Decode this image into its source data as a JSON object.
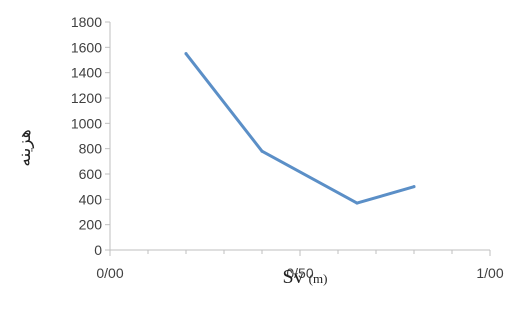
{
  "chart_data": {
    "type": "line",
    "title": "",
    "xlabel": "Sv",
    "xlabel_unit": "(m)",
    "ylabel": "هزینه",
    "x": [
      0.2,
      0.4,
      0.65,
      0.8
    ],
    "series": [
      {
        "values": [
          1550,
          780,
          370,
          500
        ],
        "color": "#5b8fc7"
      }
    ],
    "xlim": [
      0,
      1
    ],
    "ylim": [
      0,
      1800
    ],
    "x_ticks": [
      {
        "value": 0,
        "label": "0/00"
      },
      {
        "value": 0.5,
        "label": "0/50"
      },
      {
        "value": 1,
        "label": "1/00"
      }
    ],
    "y_ticks": [
      {
        "value": 0,
        "label": "0"
      },
      {
        "value": 200,
        "label": "200"
      },
      {
        "value": 400,
        "label": "400"
      },
      {
        "value": 600,
        "label": "600"
      },
      {
        "value": 800,
        "label": "800"
      },
      {
        "value": 1000,
        "label": "1000"
      },
      {
        "value": 1200,
        "label": "1200"
      },
      {
        "value": 1400,
        "label": "1400"
      },
      {
        "value": 1600,
        "label": "1600"
      },
      {
        "value": 1800,
        "label": "1800"
      }
    ],
    "grid": false,
    "legend": "none"
  }
}
